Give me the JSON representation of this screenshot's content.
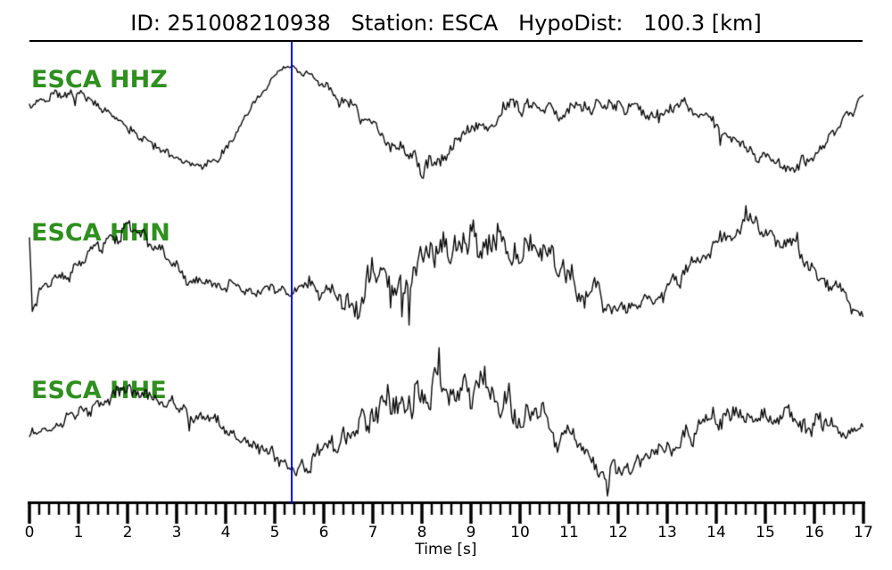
{
  "header": {
    "title_text": "ID: 251008210938   Station: ESCA   HypoDist:   100.3 [km]",
    "event_id": "251008210938",
    "station": "ESCA",
    "hypodist_km": "100.3"
  },
  "colors": {
    "trace": "#0a0a0a",
    "label_green": "#2f8f1f",
    "pick_blue": "#0000ee",
    "axis": "#000000",
    "background": "#ffffff"
  },
  "chart_data": {
    "type": "line",
    "title": "ID: 251008210938   Station: ESCA   HypoDist:   100.3 [km]",
    "xlabel": "Time [s]",
    "x_range": [
      0,
      17
    ],
    "x_major_step": 1,
    "x_minor_step": 0.2,
    "tick_labels": [
      "0",
      "1",
      "2",
      "3",
      "4",
      "5",
      "6",
      "7",
      "8",
      "9",
      "10",
      "11",
      "12",
      "13",
      "14",
      "15",
      "16",
      "17"
    ],
    "pick_time_s": 5.35,
    "grid": false,
    "y_axis_shown": false,
    "y_units": "px_screen",
    "legend_position": "inline-left",
    "series": [
      {
        "name": "ESCA HHZ",
        "label_color": "#2f8f1f",
        "points": [
          [
            0,
            115,
            8
          ],
          [
            0.4,
            107,
            8
          ],
          [
            0.8,
            101,
            8
          ],
          [
            1.2,
            112,
            8
          ],
          [
            1.6,
            128,
            8
          ],
          [
            2.0,
            143,
            7
          ],
          [
            2.4,
            158,
            7
          ],
          [
            2.8,
            172,
            6
          ],
          [
            3.2,
            182,
            6
          ],
          [
            3.5,
            186,
            6
          ],
          [
            3.8,
            178,
            6
          ],
          [
            4.1,
            160,
            6
          ],
          [
            4.4,
            134,
            6
          ],
          [
            4.7,
            107,
            5
          ],
          [
            5.0,
            85,
            5
          ],
          [
            5.3,
            74,
            5
          ],
          [
            5.6,
            80,
            5
          ],
          [
            5.9,
            91,
            6
          ],
          [
            6.2,
            105,
            8
          ],
          [
            6.5,
            120,
            10
          ],
          [
            6.9,
            140,
            12
          ],
          [
            7.3,
            158,
            12
          ],
          [
            7.7,
            172,
            13
          ],
          [
            8.0,
            188,
            14
          ],
          [
            8.3,
            184,
            14
          ],
          [
            8.6,
            168,
            13
          ],
          [
            9.0,
            148,
            13
          ],
          [
            9.4,
            135,
            12
          ],
          [
            9.8,
            126,
            12
          ],
          [
            10.3,
            122,
            12
          ],
          [
            10.8,
            126,
            12
          ],
          [
            11.3,
            120,
            11
          ],
          [
            11.8,
            118,
            11
          ],
          [
            12.3,
            121,
            11
          ],
          [
            12.8,
            123,
            11
          ],
          [
            13.3,
            118,
            10
          ],
          [
            13.7,
            126,
            10
          ],
          [
            14.1,
            142,
            10
          ],
          [
            14.5,
            158,
            10
          ],
          [
            15.0,
            178,
            10
          ],
          [
            15.4,
            188,
            10
          ],
          [
            15.8,
            182,
            9
          ],
          [
            16.2,
            162,
            8
          ],
          [
            16.6,
            135,
            8
          ],
          [
            17.0,
            107,
            7
          ]
        ]
      },
      {
        "name": "ESCA HHN",
        "label_color": "#2f8f1f",
        "points": [
          [
            0,
            268,
            3
          ],
          [
            0.06,
            352,
            3
          ],
          [
            0.2,
            330,
            8
          ],
          [
            0.5,
            320,
            10
          ],
          [
            0.8,
            308,
            10
          ],
          [
            1.2,
            288,
            11
          ],
          [
            1.6,
            268,
            12
          ],
          [
            2.0,
            257,
            12
          ],
          [
            2.4,
            268,
            11
          ],
          [
            2.8,
            292,
            10
          ],
          [
            3.2,
            310,
            9
          ],
          [
            3.6,
            318,
            8
          ],
          [
            4.0,
            320,
            8
          ],
          [
            4.4,
            322,
            8
          ],
          [
            4.8,
            324,
            8
          ],
          [
            5.2,
            322,
            8
          ],
          [
            5.6,
            328,
            9
          ],
          [
            6.0,
            326,
            13
          ],
          [
            6.4,
            328,
            20
          ],
          [
            6.8,
            330,
            30
          ],
          [
            7.2,
            322,
            34
          ],
          [
            7.6,
            308,
            34
          ],
          [
            8.0,
            295,
            32
          ],
          [
            8.4,
            285,
            30
          ],
          [
            8.8,
            275,
            29
          ],
          [
            9.2,
            270,
            28
          ],
          [
            9.6,
            272,
            26
          ],
          [
            10.0,
            280,
            24
          ],
          [
            10.4,
            292,
            22
          ],
          [
            10.8,
            305,
            20
          ],
          [
            11.2,
            320,
            18
          ],
          [
            11.6,
            332,
            17
          ],
          [
            12.0,
            348,
            16
          ],
          [
            12.4,
            346,
            15
          ],
          [
            12.8,
            335,
            14
          ],
          [
            13.2,
            318,
            14
          ],
          [
            13.6,
            298,
            14
          ],
          [
            14.0,
            275,
            14
          ],
          [
            14.4,
            255,
            14
          ],
          [
            14.7,
            250,
            13
          ],
          [
            15.0,
            258,
            13
          ],
          [
            15.4,
            272,
            12
          ],
          [
            15.8,
            292,
            12
          ],
          [
            16.2,
            312,
            11
          ],
          [
            16.6,
            330,
            10
          ],
          [
            17.0,
            352,
            9
          ]
        ]
      },
      {
        "name": "ESCA HHE",
        "label_color": "#2f8f1f",
        "points": [
          [
            0,
            488,
            8
          ],
          [
            0.4,
            478,
            9
          ],
          [
            0.8,
            468,
            10
          ],
          [
            1.2,
            458,
            11
          ],
          [
            1.6,
            450,
            12
          ],
          [
            2.0,
            444,
            13
          ],
          [
            2.4,
            446,
            12
          ],
          [
            2.8,
            452,
            11
          ],
          [
            3.2,
            462,
            10
          ],
          [
            3.6,
            472,
            10
          ],
          [
            4.0,
            482,
            10
          ],
          [
            4.4,
            492,
            10
          ],
          [
            4.8,
            505,
            10
          ],
          [
            5.2,
            518,
            10
          ],
          [
            5.5,
            524,
            10
          ],
          [
            5.8,
            515,
            12
          ],
          [
            6.2,
            498,
            15
          ],
          [
            6.6,
            478,
            20
          ],
          [
            7.0,
            462,
            25
          ],
          [
            7.4,
            448,
            28
          ],
          [
            7.8,
            438,
            30
          ],
          [
            8.2,
            432,
            32
          ],
          [
            8.6,
            430,
            32
          ],
          [
            9.0,
            436,
            30
          ],
          [
            9.4,
            444,
            28
          ],
          [
            9.8,
            455,
            25
          ],
          [
            10.2,
            468,
            22
          ],
          [
            10.6,
            482,
            20
          ],
          [
            11.0,
            498,
            18
          ],
          [
            11.4,
            512,
            16
          ],
          [
            11.9,
            532,
            16
          ],
          [
            12.3,
            525,
            15
          ],
          [
            12.7,
            512,
            15
          ],
          [
            13.1,
            498,
            15
          ],
          [
            13.5,
            487,
            15
          ],
          [
            13.9,
            475,
            15
          ],
          [
            14.3,
            468,
            15
          ],
          [
            14.7,
            465,
            14
          ],
          [
            15.1,
            467,
            14
          ],
          [
            15.5,
            470,
            13
          ],
          [
            15.9,
            475,
            13
          ],
          [
            16.3,
            480,
            12
          ],
          [
            16.7,
            484,
            11
          ],
          [
            17.0,
            487,
            10
          ]
        ]
      }
    ]
  }
}
